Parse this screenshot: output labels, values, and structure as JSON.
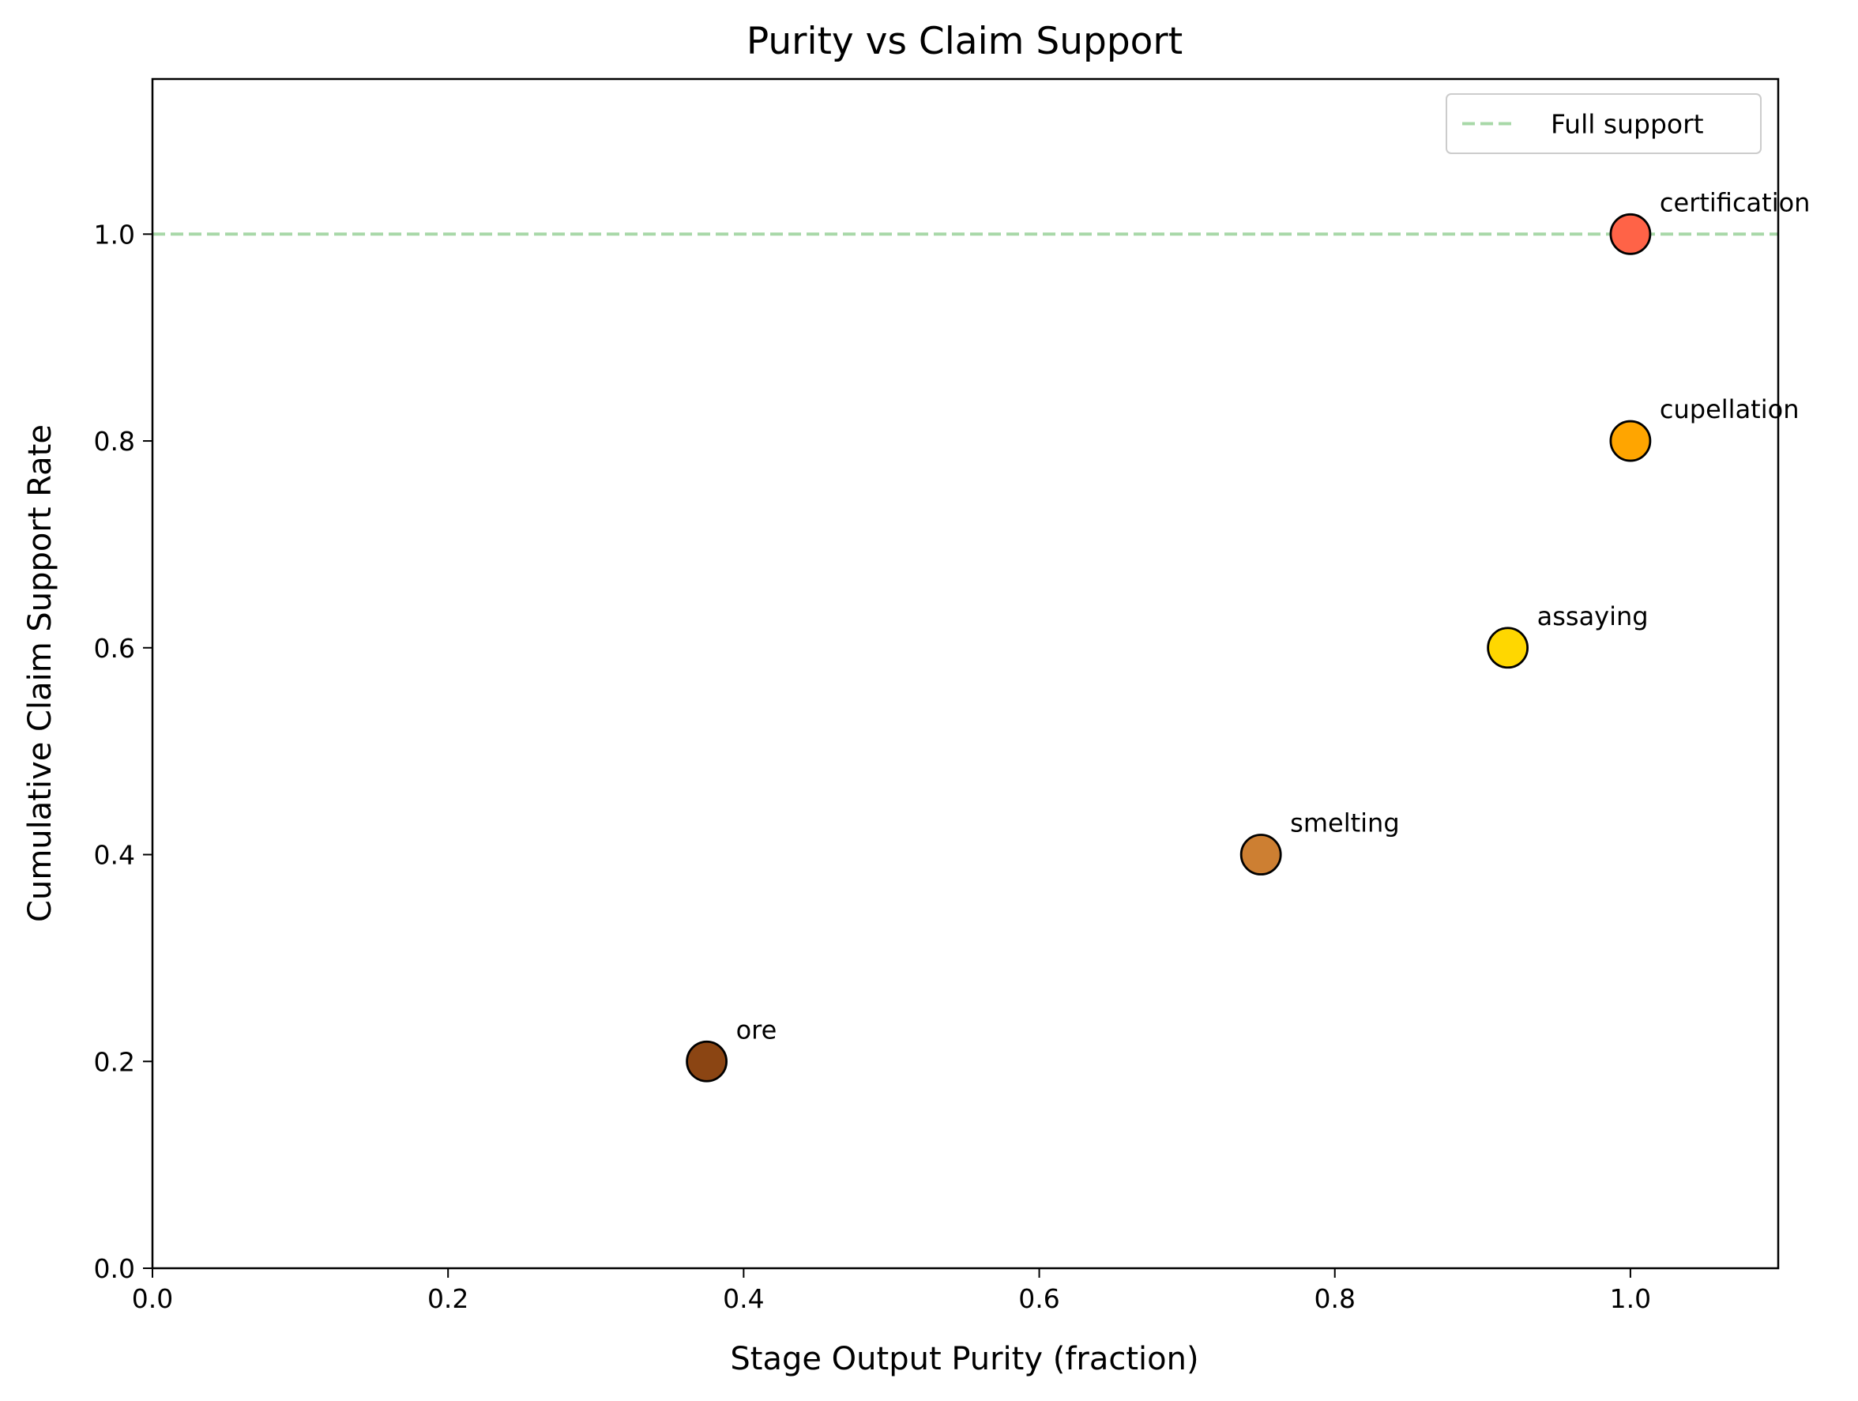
{
  "chart_data": {
    "type": "scatter",
    "title": "Purity vs Claim Support",
    "xlabel": "Stage Output Purity (fraction)",
    "ylabel": "Cumulative Claim Support Rate",
    "xlim": [
      0.0,
      1.1
    ],
    "ylim": [
      0.0,
      1.15
    ],
    "x_ticks": [
      0.0,
      0.2,
      0.4,
      0.6,
      0.8,
      1.0
    ],
    "x_tick_labels": [
      "0.0",
      "0.2",
      "0.4",
      "0.6",
      "0.8",
      "1.0"
    ],
    "y_ticks": [
      0.0,
      0.2,
      0.4,
      0.6,
      0.8,
      1.0
    ],
    "y_tick_labels": [
      "0.0",
      "0.2",
      "0.4",
      "0.6",
      "0.8",
      "1.0"
    ],
    "grid": false,
    "legend_position": "top-right",
    "points": [
      {
        "label": "ore",
        "x": 0.375,
        "y": 0.2,
        "color": "#8B4513"
      },
      {
        "label": "smelting",
        "x": 0.75,
        "y": 0.4,
        "color": "#CD7F32"
      },
      {
        "label": "assaying",
        "x": 0.917,
        "y": 0.6,
        "color": "#FFD700"
      },
      {
        "label": "cupellation",
        "x": 1.0,
        "y": 0.8,
        "color": "#FFA500"
      },
      {
        "label": "certification",
        "x": 1.0,
        "y": 1.0,
        "color": "#FF6347"
      }
    ],
    "reference_line": {
      "name": "Full support",
      "y": 1.0,
      "color": "#A8D8A8",
      "style": "dashed"
    }
  }
}
